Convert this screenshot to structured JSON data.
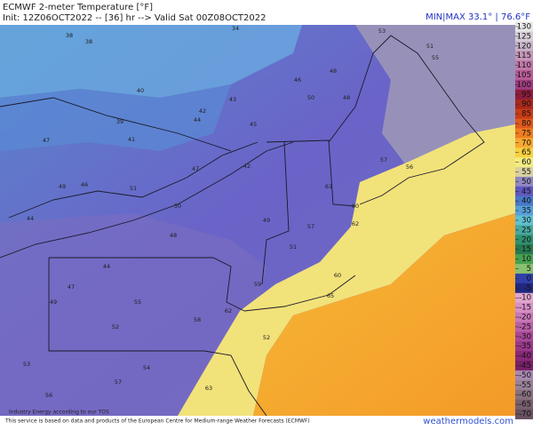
{
  "header": {
    "title": "ECMWF 2-meter Temperature [°F]",
    "subtitle": "Init: 12Z06OCT2022 -- [36] hr --> Valid Sat 00Z08OCT2022",
    "minmax": "MIN|MAX 33.1° | 76.6°F"
  },
  "colorbar": {
    "ticks": [
      130,
      125,
      120,
      115,
      110,
      105,
      100,
      95,
      90,
      85,
      80,
      75,
      70,
      65,
      60,
      55,
      50,
      45,
      40,
      35,
      30,
      25,
      20,
      15,
      10,
      5,
      0,
      -5,
      -10,
      -15,
      -20,
      -25,
      -30,
      -35,
      -40,
      -45,
      -50,
      -55,
      -60,
      -65,
      -70
    ],
    "colors": [
      "#e8e8e8",
      "#d6d0d6",
      "#c8b4c8",
      "#c496b8",
      "#c078a8",
      "#b85c98",
      "#a03c80",
      "#8c1c3c",
      "#a8281c",
      "#c83c18",
      "#e0581c",
      "#f07c20",
      "#f8a830",
      "#f8d040",
      "#f4ec80",
      "#d8d0a0",
      "#9088c0",
      "#6058c0",
      "#4878c8",
      "#58a0d8",
      "#60c0d0",
      "#48a8a0",
      "#309070",
      "#287850",
      "#48a050",
      "#88c070",
      "#3040a8",
      "#202880",
      "#e0a8d0",
      "#d890c8",
      "#c878b8",
      "#b860a8",
      "#a84898",
      "#983888",
      "#882878",
      "#782068",
      "#a888b0",
      "#988098",
      "#887080",
      "#786070",
      "#685060"
    ]
  },
  "map": {
    "values": [
      38,
      38,
      34,
      40,
      39,
      41,
      42,
      43,
      44,
      46,
      48,
      50,
      47,
      46,
      44,
      51,
      50,
      49,
      51,
      57,
      60,
      62,
      65,
      55,
      51,
      53,
      57,
      56,
      60,
      58,
      62,
      59,
      55,
      52,
      49,
      53,
      63,
      57,
      54,
      47,
      42,
      48,
      44,
      47,
      56,
      45,
      61,
      52,
      48,
      49
    ]
  },
  "footer": {
    "notice": "This service is based on data and products of the European Centre for Medium-range Weather Forecasts (ECMWF)",
    "credit": "Industry Energy according to our TOS",
    "brand": "weathermodels.com"
  }
}
